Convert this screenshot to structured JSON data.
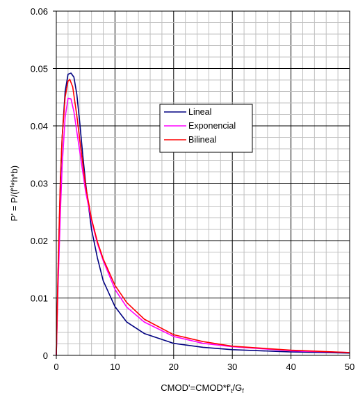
{
  "chart_data": {
    "type": "line",
    "xlabel": "CMOD'=CMOD*f't/Gf",
    "ylabel": "P' = P/(f't*h*b)",
    "xlim": [
      0,
      50
    ],
    "ylim": [
      0,
      0.06
    ],
    "x_ticks": [
      "0",
      "10",
      "20",
      "30",
      "40",
      "50"
    ],
    "y_ticks": [
      "0",
      "0.01",
      "0.02",
      "0.03",
      "0.04",
      "0.05",
      "0.06"
    ],
    "grid": {
      "major": true,
      "minor": true,
      "minor_divisions": 5
    },
    "legend_position": "center",
    "series": [
      {
        "name": "Lineal",
        "color": "#000080",
        "x": [
          0,
          0.3,
          0.7,
          1.0,
          1.5,
          2.0,
          2.5,
          3.0,
          3.5,
          4.0,
          4.5,
          5.0,
          6.0,
          7.0,
          8.0,
          10.0,
          12.0,
          15.0,
          20.0,
          25.0,
          30.0,
          40.0,
          50.0
        ],
        "y": [
          0,
          0.014,
          0.03,
          0.038,
          0.046,
          0.049,
          0.0492,
          0.0485,
          0.0455,
          0.0405,
          0.035,
          0.03,
          0.022,
          0.017,
          0.013,
          0.0085,
          0.0058,
          0.0038,
          0.0021,
          0.0014,
          0.001,
          0.0006,
          0.0004
        ]
      },
      {
        "name": "Exponencial",
        "color": "#ff00ff",
        "x": [
          0,
          0.3,
          0.7,
          1.0,
          1.5,
          2.0,
          2.5,
          3.0,
          3.5,
          4.0,
          5.0,
          6.0,
          7.0,
          8.0,
          10.0,
          12.0,
          15.0,
          20.0,
          25.0,
          30.0,
          40.0,
          50.0
        ],
        "y": [
          0,
          0.012,
          0.025,
          0.033,
          0.0415,
          0.0448,
          0.0447,
          0.0425,
          0.039,
          0.0355,
          0.0285,
          0.0235,
          0.0195,
          0.0165,
          0.0115,
          0.0084,
          0.0058,
          0.0033,
          0.0021,
          0.0015,
          0.0008,
          0.0005
        ]
      },
      {
        "name": "Bilineal",
        "color": "#ff0000",
        "x": [
          0,
          0.3,
          0.7,
          1.0,
          1.5,
          2.0,
          2.3,
          2.8,
          3.5,
          4.0,
          5.0,
          6.0,
          7.0,
          8.0,
          10.0,
          12.0,
          15.0,
          20.0,
          25.0,
          30.0,
          40.0,
          50.0
        ],
        "y": [
          0,
          0.015,
          0.031,
          0.038,
          0.045,
          0.0478,
          0.0481,
          0.0468,
          0.0418,
          0.0375,
          0.0295,
          0.0238,
          0.0198,
          0.0168,
          0.0122,
          0.0092,
          0.0063,
          0.0036,
          0.0024,
          0.0016,
          0.0009,
          0.0005
        ]
      }
    ]
  }
}
